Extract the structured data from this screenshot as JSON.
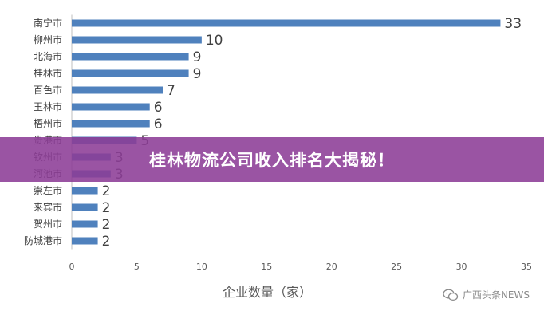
{
  "banner": {
    "title": "桂林物流公司收入排名大揭秘！"
  },
  "watermark": {
    "text": "广西头条NEWS",
    "icon": "wechat-icon"
  },
  "chart_data": {
    "type": "bar",
    "orientation": "horizontal",
    "categories": [
      "南宁市",
      "柳州市",
      "北海市",
      "桂林市",
      "百色市",
      "玉林市",
      "梧州市",
      "贵港市",
      "钦州市",
      "河池市",
      "崇左市",
      "来宾市",
      "贺州市",
      "防城港市"
    ],
    "values": [
      33,
      10,
      9,
      9,
      7,
      6,
      6,
      5,
      3,
      3,
      2,
      2,
      2,
      2
    ],
    "xlabel": "企业数量（家）",
    "ylabel": "",
    "xlim": [
      0,
      35
    ],
    "xticks": [
      0,
      5,
      10,
      15,
      20,
      25,
      30,
      35
    ],
    "bar_color": "#4f81bd",
    "grid": false,
    "legend": "none",
    "data_labels": true
  }
}
